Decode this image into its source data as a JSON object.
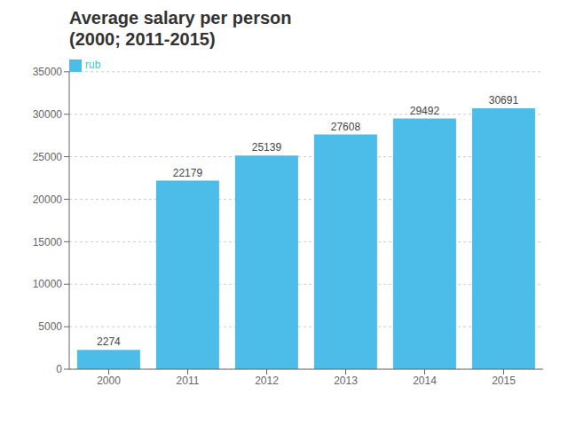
{
  "chart_data": {
    "type": "bar",
    "title": "Average salary per person",
    "subtitle": "(2000; 2011-2015)",
    "categories": [
      "2000",
      "2011",
      "2012",
      "2013",
      "2014",
      "2015"
    ],
    "series": [
      {
        "name": "rub",
        "color": "#4BBDE8",
        "values": [
          2274,
          22179,
          25139,
          27608,
          29492,
          30691
        ]
      }
    ],
    "ylim": [
      0,
      35000
    ],
    "yticks": [
      0,
      5000,
      10000,
      15000,
      20000,
      25000,
      30000,
      35000
    ],
    "grid": true,
    "legend": "upper left",
    "data_labels": true
  }
}
